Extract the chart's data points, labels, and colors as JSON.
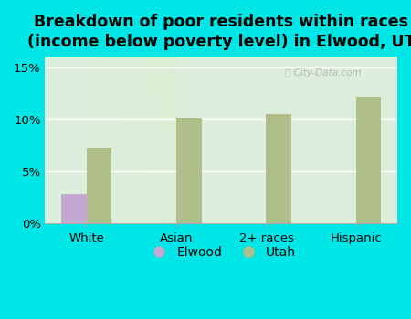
{
  "title": "Breakdown of poor residents within races\n(income below poverty level) in Elwood, UT",
  "categories": [
    "White",
    "Asian",
    "2+ races",
    "Hispanic"
  ],
  "elwood_values": [
    2.8,
    0,
    0,
    0
  ],
  "utah_values": [
    7.3,
    10.1,
    10.5,
    12.2
  ],
  "elwood_color": "#c4a8d4",
  "utah_color": "#b0bf8a",
  "background_outer": "#00e5e5",
  "yticks": [
    0,
    5,
    10,
    15
  ],
  "ylim": [
    0,
    16
  ],
  "bar_width": 0.28,
  "legend_labels": [
    "Elwood",
    "Utah"
  ],
  "title_fontsize": 12.5,
  "tick_fontsize": 9.5,
  "legend_fontsize": 10
}
